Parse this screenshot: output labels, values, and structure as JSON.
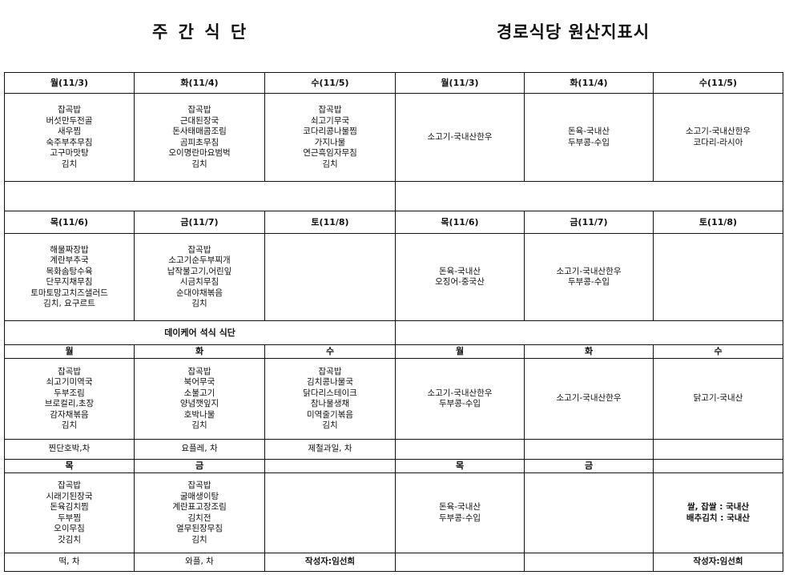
{
  "left_title": "주 간 식 단",
  "right_title": "경로식당 원산지표시",
  "rows": [
    {
      "h": 26,
      "cells": [
        [
          "월(11/3)",
          "h"
        ],
        [
          "화(11/4)",
          "h"
        ],
        [
          "수(11/5)",
          "h"
        ],
        [
          "월(11/3)",
          "h"
        ],
        [
          "화(11/4)",
          "h"
        ],
        [
          "수(11/5)",
          "h"
        ]
      ]
    },
    {
      "h": 110,
      "cells": [
        [
          "잡곡밥\n버섯만두전골\n새우찜\n숙주부추무침\n고구마맛탕\n김치"
        ],
        [
          "잡곡밥\n근대된장국\n돈사태매콤조림\n곰피초무침\n오이명란마요범벅\n김치"
        ],
        [
          "잡곡밥\n쇠고기무국\n코다리콩나물찜\n가지나물\n연근흑임자무침\n김치"
        ],
        [
          "소고기-국내산한우"
        ],
        [
          "돈육-국내산\n두부콩-수입"
        ],
        [
          "소고기-국내산한우\n코다리-라시아"
        ]
      ]
    },
    {
      "h": 37,
      "cells": [
        [
          "",
          "",
          3
        ],
        [
          "",
          "",
          3
        ]
      ]
    },
    {
      "h": 28,
      "cells": [
        [
          "목(11/6)",
          "h"
        ],
        [
          "금(11/7)",
          "h"
        ],
        [
          "토(11/8)",
          "h"
        ],
        [
          "목(11/6)",
          "h"
        ],
        [
          "금(11/7)",
          "h"
        ],
        [
          "토(11/8)",
          "h"
        ]
      ]
    },
    {
      "h": 109,
      "cells": [
        [
          "해물짜장밥\n계란부추국\n목화솜탕수육\n단무지채무침\n토마토망고치즈샐러드\n김치, 요구르트"
        ],
        [
          "잡곡밥\n소고기순두부찌개\n납작불고기,어린잎\n시금치무침\n순대야채볶음\n김치"
        ],
        [
          ""
        ],
        [
          "돈육-국내산\n오징어-중국산"
        ],
        [
          "소고기-국내산한우\n두부콩-수입"
        ],
        [
          ""
        ]
      ]
    },
    {
      "h": 30,
      "cells": [
        [
          "데이케어 석식 식단",
          "h",
          3
        ],
        [
          "",
          "",
          3
        ]
      ]
    },
    {
      "h": 17,
      "cells": [
        [
          "월",
          "h"
        ],
        [
          "화",
          "h"
        ],
        [
          "수",
          "h"
        ],
        [
          "월",
          "h"
        ],
        [
          "화",
          "h"
        ],
        [
          "수",
          "h"
        ]
      ]
    },
    {
      "h": 101,
      "cells": [
        [
          "잡곡밥\n쇠고기미역국\n두부조림\n브로컬리,초장\n감자채볶음\n김치"
        ],
        [
          "잡곡밥\n북어무국\n소불고기\n양념깻잎지\n호박나물\n김치"
        ],
        [
          "잡곡밥\n김치콩나물국\n닭다리스테이크\n참나물생채\n미역줄기볶음\n김치"
        ],
        [
          "소고기-국내산한우\n두부콩-수입"
        ],
        [
          "소고기-국내산한우"
        ],
        [
          "닭고기-국내산"
        ]
      ]
    },
    {
      "h": 25,
      "cells": [
        [
          "찐단호박,차"
        ],
        [
          "요플레, 차"
        ],
        [
          "제철과일, 차"
        ],
        [
          ""
        ],
        [
          ""
        ],
        [
          ""
        ]
      ]
    },
    {
      "h": 17,
      "cells": [
        [
          "목",
          "h"
        ],
        [
          "금",
          "h"
        ],
        [
          "",
          "h"
        ],
        [
          "목",
          "h"
        ],
        [
          "금",
          "h"
        ],
        [
          "",
          "h"
        ]
      ]
    },
    {
      "h": 100,
      "cells": [
        [
          "잡곡밥\n시래기된장국\n돈육김치찜\n두부찜\n오이무침\n갓김치"
        ],
        [
          "잡곡밥\n굴매생이탕\n계란표고장조림\n김치전\n열무된장무침\n김치"
        ],
        [
          ""
        ],
        [
          "돈육-국내산\n두부콩-수입"
        ],
        [
          ""
        ],
        [
          "쌀, 잡쌀 :  국내산\n배추김치 : 국내산",
          "b"
        ]
      ]
    },
    {
      "h": 23,
      "cells": [
        [
          "떡, 차"
        ],
        [
          "와플, 차"
        ],
        [
          "작성자:임선희",
          "b"
        ],
        [
          ""
        ],
        [
          ""
        ],
        [
          "작성자:임선희",
          "b"
        ]
      ]
    }
  ]
}
